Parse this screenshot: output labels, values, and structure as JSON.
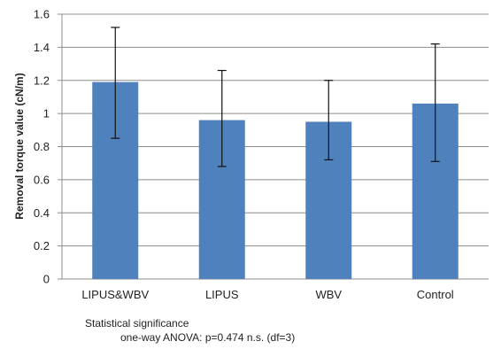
{
  "chart_data": {
    "type": "bar",
    "categories": [
      "LIPUS&WBV",
      "LIPUS",
      "WBV",
      "Control"
    ],
    "values": [
      1.19,
      0.96,
      0.95,
      1.06
    ],
    "error_low": [
      0.85,
      0.68,
      0.72,
      0.71
    ],
    "error_high": [
      1.52,
      1.26,
      1.2,
      1.42
    ],
    "ylabel": "Removal torque value (cN/m)",
    "ylim": [
      0,
      1.6
    ],
    "yticks": [
      0,
      0.2,
      0.4,
      0.6,
      0.8,
      1,
      1.2,
      1.4,
      1.6
    ],
    "ytick_labels": [
      "0",
      "0.2",
      "0.4",
      "0.6",
      "0.8",
      "1",
      "1.2",
      "1.4",
      "1.6"
    ],
    "grid": true,
    "bar_color": "#4f81bd"
  },
  "notes": {
    "title": "Statistical significance",
    "detail": "one-way ANOVA: p=0.474 n.s. (df=3)"
  }
}
